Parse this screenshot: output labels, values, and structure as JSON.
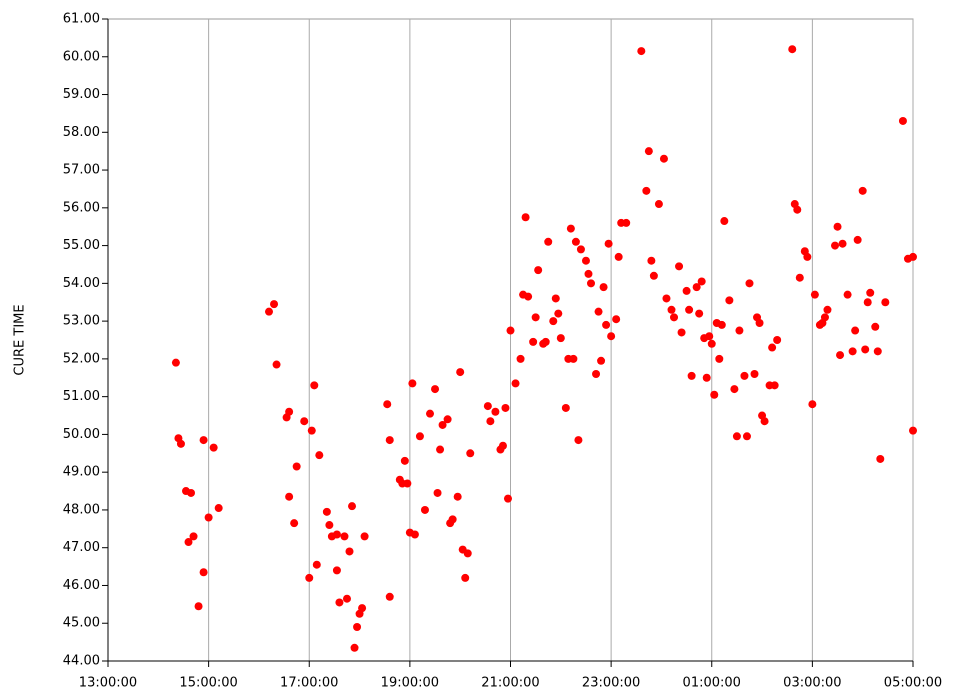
{
  "chart_data": {
    "type": "scatter",
    "y_label": "CURE TIME",
    "color": "#ff0000",
    "grid": true,
    "xlim": [
      13,
      29
    ],
    "ylim": [
      44,
      61
    ],
    "xticks": [
      {
        "value": 13,
        "label": "13:00:00"
      },
      {
        "value": 15,
        "label": "15:00:00"
      },
      {
        "value": 17,
        "label": "17:00:00"
      },
      {
        "value": 19,
        "label": "19:00:00"
      },
      {
        "value": 21,
        "label": "21:00:00"
      },
      {
        "value": 23,
        "label": "23:00:00"
      },
      {
        "value": 25,
        "label": "01:00:00"
      },
      {
        "value": 27,
        "label": "03:00:00"
      },
      {
        "value": 29,
        "label": "05:00:00"
      }
    ],
    "yticks": [
      {
        "value": 44,
        "label": "44.00"
      },
      {
        "value": 45,
        "label": "45.00"
      },
      {
        "value": 46,
        "label": "46.00"
      },
      {
        "value": 47,
        "label": "47.00"
      },
      {
        "value": 48,
        "label": "48.00"
      },
      {
        "value": 49,
        "label": "49.00"
      },
      {
        "value": 50,
        "label": "50.00"
      },
      {
        "value": 51,
        "label": "51.00"
      },
      {
        "value": 52,
        "label": "52.00"
      },
      {
        "value": 53,
        "label": "53.00"
      },
      {
        "value": 54,
        "label": "54.00"
      },
      {
        "value": 55,
        "label": "55.00"
      },
      {
        "value": 56,
        "label": "56.00"
      },
      {
        "value": 57,
        "label": "57.00"
      },
      {
        "value": 58,
        "label": "58.00"
      },
      {
        "value": 59,
        "label": "59.00"
      },
      {
        "value": 60,
        "label": "60.00"
      },
      {
        "value": 61,
        "label": "61.00"
      }
    ],
    "x": [
      14.35,
      14.4,
      14.45,
      14.55,
      14.65,
      14.6,
      14.7,
      14.8,
      14.9,
      14.9,
      15.0,
      15.1,
      15.2,
      16.2,
      16.3,
      16.35,
      16.55,
      16.6,
      16.6,
      16.7,
      16.75,
      16.9,
      17.0,
      17.05,
      17.1,
      17.15,
      17.2,
      17.35,
      17.4,
      17.45,
      17.55,
      17.55,
      17.6,
      17.7,
      17.75,
      17.8,
      17.85,
      17.9,
      17.95,
      18.0,
      18.05,
      18.1,
      18.55,
      18.6,
      18.6,
      18.8,
      18.85,
      18.9,
      18.95,
      19.0,
      19.05,
      19.1,
      19.2,
      19.3,
      19.4,
      19.5,
      19.55,
      19.6,
      19.65,
      19.75,
      19.8,
      19.85,
      19.95,
      20.0,
      20.05,
      20.1,
      20.15,
      20.2,
      20.55,
      20.6,
      20.7,
      20.8,
      20.85,
      20.9,
      20.95,
      21.0,
      21.1,
      21.2,
      21.25,
      21.3,
      21.35,
      21.45,
      21.5,
      21.55,
      21.65,
      21.7,
      21.75,
      21.85,
      21.9,
      21.95,
      22.0,
      22.1,
      22.15,
      22.25,
      22.2,
      22.3,
      22.35,
      22.4,
      22.5,
      22.55,
      22.6,
      22.7,
      22.75,
      22.8,
      22.85,
      22.9,
      22.95,
      23.0,
      23.1,
      23.15,
      23.2,
      23.3,
      23.6,
      23.7,
      23.75,
      23.8,
      23.85,
      23.95,
      24.05,
      24.1,
      24.2,
      24.25,
      24.35,
      24.4,
      24.5,
      24.55,
      24.6,
      24.7,
      24.75,
      24.8,
      24.85,
      24.9,
      24.95,
      25.0,
      25.05,
      25.1,
      25.15,
      25.2,
      25.25,
      25.35,
      25.45,
      25.5,
      25.55,
      25.65,
      25.7,
      25.75,
      25.85,
      25.9,
      25.95,
      26.0,
      26.05,
      26.15,
      26.2,
      26.25,
      26.3,
      26.6,
      26.65,
      26.7,
      26.75,
      26.85,
      26.9,
      27.0,
      27.05,
      27.15,
      27.2,
      27.25,
      27.3,
      27.45,
      27.5,
      27.55,
      27.6,
      27.7,
      27.8,
      27.85,
      27.9,
      28.0,
      28.05,
      28.1,
      28.15,
      28.25,
      28.3,
      28.35,
      28.45,
      28.8,
      28.9,
      29.0,
      29.0
    ],
    "values": [
      51.9,
      49.9,
      49.75,
      48.5,
      48.45,
      47.15,
      47.3,
      45.45,
      46.35,
      49.85,
      47.8,
      49.65,
      48.05,
      53.25,
      53.45,
      51.85,
      50.45,
      50.6,
      48.35,
      47.65,
      49.15,
      50.35,
      46.2,
      50.1,
      51.3,
      46.55,
      49.45,
      47.95,
      47.6,
      47.3,
      47.35,
      46.4,
      45.55,
      47.3,
      45.65,
      46.9,
      48.1,
      44.35,
      44.9,
      45.25,
      45.4,
      47.3,
      50.8,
      49.85,
      45.7,
      48.8,
      48.7,
      49.3,
      48.7,
      47.4,
      51.35,
      47.35,
      49.95,
      48.0,
      50.55,
      51.2,
      48.45,
      49.6,
      50.25,
      50.4,
      47.65,
      47.75,
      48.35,
      51.65,
      46.95,
      46.2,
      46.85,
      49.5,
      50.75,
      50.35,
      50.6,
      49.6,
      49.7,
      50.7,
      48.3,
      52.75,
      51.35,
      52.0,
      53.7,
      55.75,
      53.65,
      52.45,
      53.1,
      54.35,
      52.4,
      52.45,
      55.1,
      53.0,
      53.6,
      53.2,
      52.55,
      50.7,
      52.0,
      52.0,
      55.45,
      55.1,
      49.85,
      54.9,
      54.6,
      54.25,
      54.0,
      51.6,
      53.25,
      51.95,
      53.9,
      52.9,
      55.05,
      52.6,
      53.05,
      54.7,
      55.6,
      55.6,
      60.15,
      56.45,
      57.5,
      54.6,
      54.2,
      56.1,
      57.3,
      53.6,
      53.3,
      53.1,
      54.45,
      52.7,
      53.8,
      53.3,
      51.55,
      53.9,
      53.2,
      54.05,
      52.55,
      51.5,
      52.6,
      52.4,
      51.05,
      52.95,
      52.0,
      52.9,
      55.65,
      53.55,
      51.2,
      49.95,
      52.75,
      51.55,
      49.95,
      54.0,
      51.6,
      53.1,
      52.95,
      50.5,
      50.35,
      51.3,
      52.3,
      51.3,
      52.5,
      60.2,
      56.1,
      55.95,
      54.15,
      54.85,
      54.7,
      50.8,
      53.7,
      52.9,
      52.95,
      53.1,
      53.3,
      55.0,
      55.5,
      52.1,
      55.05,
      53.7,
      52.2,
      52.75,
      55.15,
      56.45,
      52.25,
      53.5,
      53.75,
      52.85,
      52.2,
      49.35,
      53.5,
      58.3,
      54.65,
      50.1,
      54.7
    ]
  }
}
